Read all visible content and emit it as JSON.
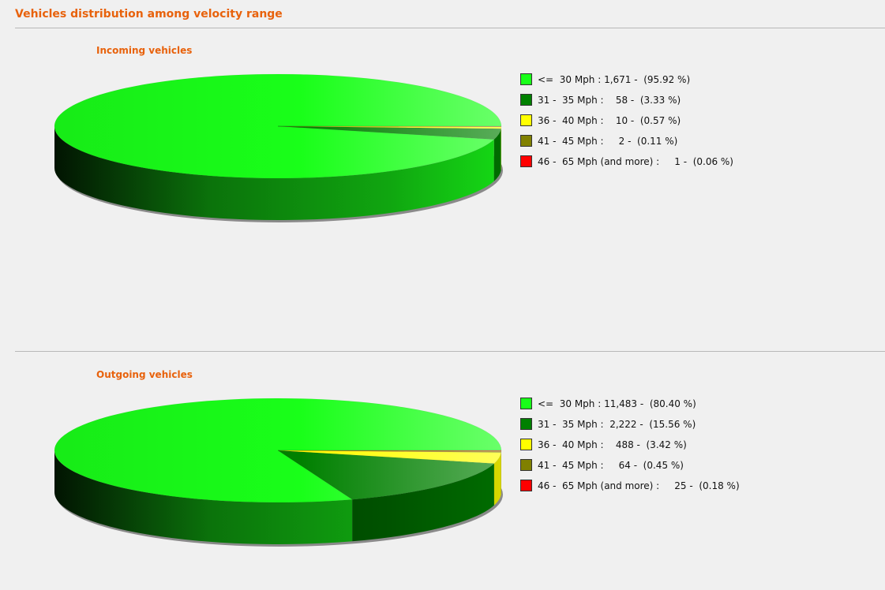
{
  "page_title": "Vehicles distribution among velocity range",
  "chart_data": [
    {
      "type": "pie",
      "title": "Incoming vehicles",
      "legend_position": "right",
      "slices": [
        {
          "label": "<=  30 Mph : 1,671 -  (95.92 %)",
          "category": "<= 30 Mph",
          "value": 1671,
          "percent": 95.92,
          "color": "#19ff19"
        },
        {
          "label": "31 -  35 Mph :    58 -  (3.33 %)",
          "category": "31 - 35 Mph",
          "value": 58,
          "percent": 3.33,
          "color": "#008000"
        },
        {
          "label": "36 -  40 Mph :    10 -  (0.57 %)",
          "category": "36 - 40 Mph",
          "value": 10,
          "percent": 0.57,
          "color": "#ffff00"
        },
        {
          "label": "41 -  45 Mph :     2 -  (0.11 %)",
          "category": "41 - 45 Mph",
          "value": 2,
          "percent": 0.11,
          "color": "#808000"
        },
        {
          "label": "46 -  65 Mph (and more) :     1 -  (0.06 %)",
          "category": "46 - 65 Mph (and more)",
          "value": 1,
          "percent": 0.06,
          "color": "#ff0000"
        }
      ]
    },
    {
      "type": "pie",
      "title": "Outgoing vehicles",
      "legend_position": "right",
      "slices": [
        {
          "label": "<=  30 Mph : 11,483 -  (80.40 %)",
          "category": "<= 30 Mph",
          "value": 11483,
          "percent": 80.4,
          "color": "#19ff19"
        },
        {
          "label": "31 -  35 Mph :  2,222 -  (15.56 %)",
          "category": "31 - 35 Mph",
          "value": 2222,
          "percent": 15.56,
          "color": "#008000"
        },
        {
          "label": "36 -  40 Mph :    488 -  (3.42 %)",
          "category": "36 - 40 Mph",
          "value": 488,
          "percent": 3.42,
          "color": "#ffff00"
        },
        {
          "label": "41 -  45 Mph :     64 -  (0.45 %)",
          "category": "41 - 45 Mph",
          "value": 64,
          "percent": 0.45,
          "color": "#808000"
        },
        {
          "label": "46 -  65 Mph (and more) :     25 -  (0.18 %)",
          "category": "46 - 65 Mph (and more)",
          "value": 25,
          "percent": 0.18,
          "color": "#ff0000"
        }
      ]
    }
  ]
}
